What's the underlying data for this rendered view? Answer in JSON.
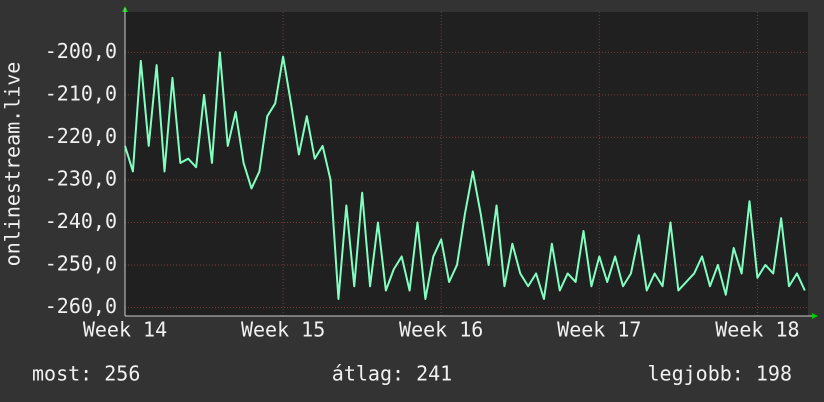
{
  "chart_data": {
    "type": "line",
    "ylabel": "onlinestream.live",
    "annotations": [
      "most: 256",
      "átlag: 241",
      "legjobb: 198"
    ],
    "xlim": [
      14,
      18.32
    ],
    "ylim": [
      -262,
      -190.5
    ],
    "xticks": [
      {
        "value": 14,
        "label": "Week 14"
      },
      {
        "value": 15,
        "label": "Week 15"
      },
      {
        "value": 16,
        "label": "Week 16"
      },
      {
        "value": 17,
        "label": "Week 17"
      },
      {
        "value": 18,
        "label": "Week 18"
      }
    ],
    "yticks": [
      {
        "value": -200,
        "label": "-200,0"
      },
      {
        "value": -210,
        "label": "-210,0"
      },
      {
        "value": -220,
        "label": "-220,0"
      },
      {
        "value": -230,
        "label": "-230,0"
      },
      {
        "value": -240,
        "label": "-240,0"
      },
      {
        "value": -250,
        "label": "-250,0"
      },
      {
        "value": -260,
        "label": "-260,0"
      }
    ],
    "grid": true,
    "series": [
      {
        "color": "#80ffc0",
        "x": [
          14.0,
          14.05,
          14.1,
          14.15,
          14.2,
          14.25,
          14.3,
          14.35,
          14.4,
          14.45,
          14.5,
          14.55,
          14.6,
          14.65,
          14.7,
          14.75,
          14.8,
          14.85,
          14.9,
          14.95,
          15.0,
          15.05,
          15.1,
          15.15,
          15.2,
          15.25,
          15.3,
          15.35,
          15.4,
          15.45,
          15.5,
          15.55,
          15.6,
          15.65,
          15.7,
          15.75,
          15.8,
          15.85,
          15.9,
          15.95,
          16.0,
          16.05,
          16.1,
          16.15,
          16.2,
          16.25,
          16.3,
          16.35,
          16.4,
          16.45,
          16.5,
          16.55,
          16.6,
          16.65,
          16.7,
          16.75,
          16.8,
          16.85,
          16.9,
          16.95,
          17.0,
          17.05,
          17.1,
          17.15,
          17.2,
          17.25,
          17.3,
          17.35,
          17.4,
          17.45,
          17.5,
          17.55,
          17.6,
          17.65,
          17.7,
          17.75,
          17.8,
          17.85,
          17.9,
          17.95,
          18.0,
          18.05,
          18.1,
          18.15,
          18.2,
          18.25,
          18.3
        ],
        "values": [
          -222,
          -228,
          -202,
          -222,
          -203,
          -228,
          -206,
          -226,
          -225,
          -227,
          -210,
          -226,
          -200,
          -222,
          -214,
          -226,
          -232,
          -228,
          -215,
          -212,
          -201,
          -212,
          -224,
          -215,
          -225,
          -222,
          -230,
          -258,
          -236,
          -255,
          -233,
          -255,
          -240,
          -256,
          -251,
          -248,
          -256,
          -240,
          -258,
          -248,
          -244,
          -254,
          -250,
          -238,
          -228,
          -238,
          -250,
          -236,
          -255,
          -245,
          -252,
          -255,
          -252,
          -258,
          -245,
          -256,
          -252,
          -254,
          -242,
          -255,
          -248,
          -254,
          -248,
          -255,
          -252,
          -243,
          -256,
          -252,
          -255,
          -240,
          -256,
          -254,
          -252,
          -248,
          -255,
          -250,
          -257,
          -246,
          -252,
          -235,
          -253,
          -250,
          -252,
          -239,
          -255,
          -252,
          -256
        ]
      }
    ]
  }
}
